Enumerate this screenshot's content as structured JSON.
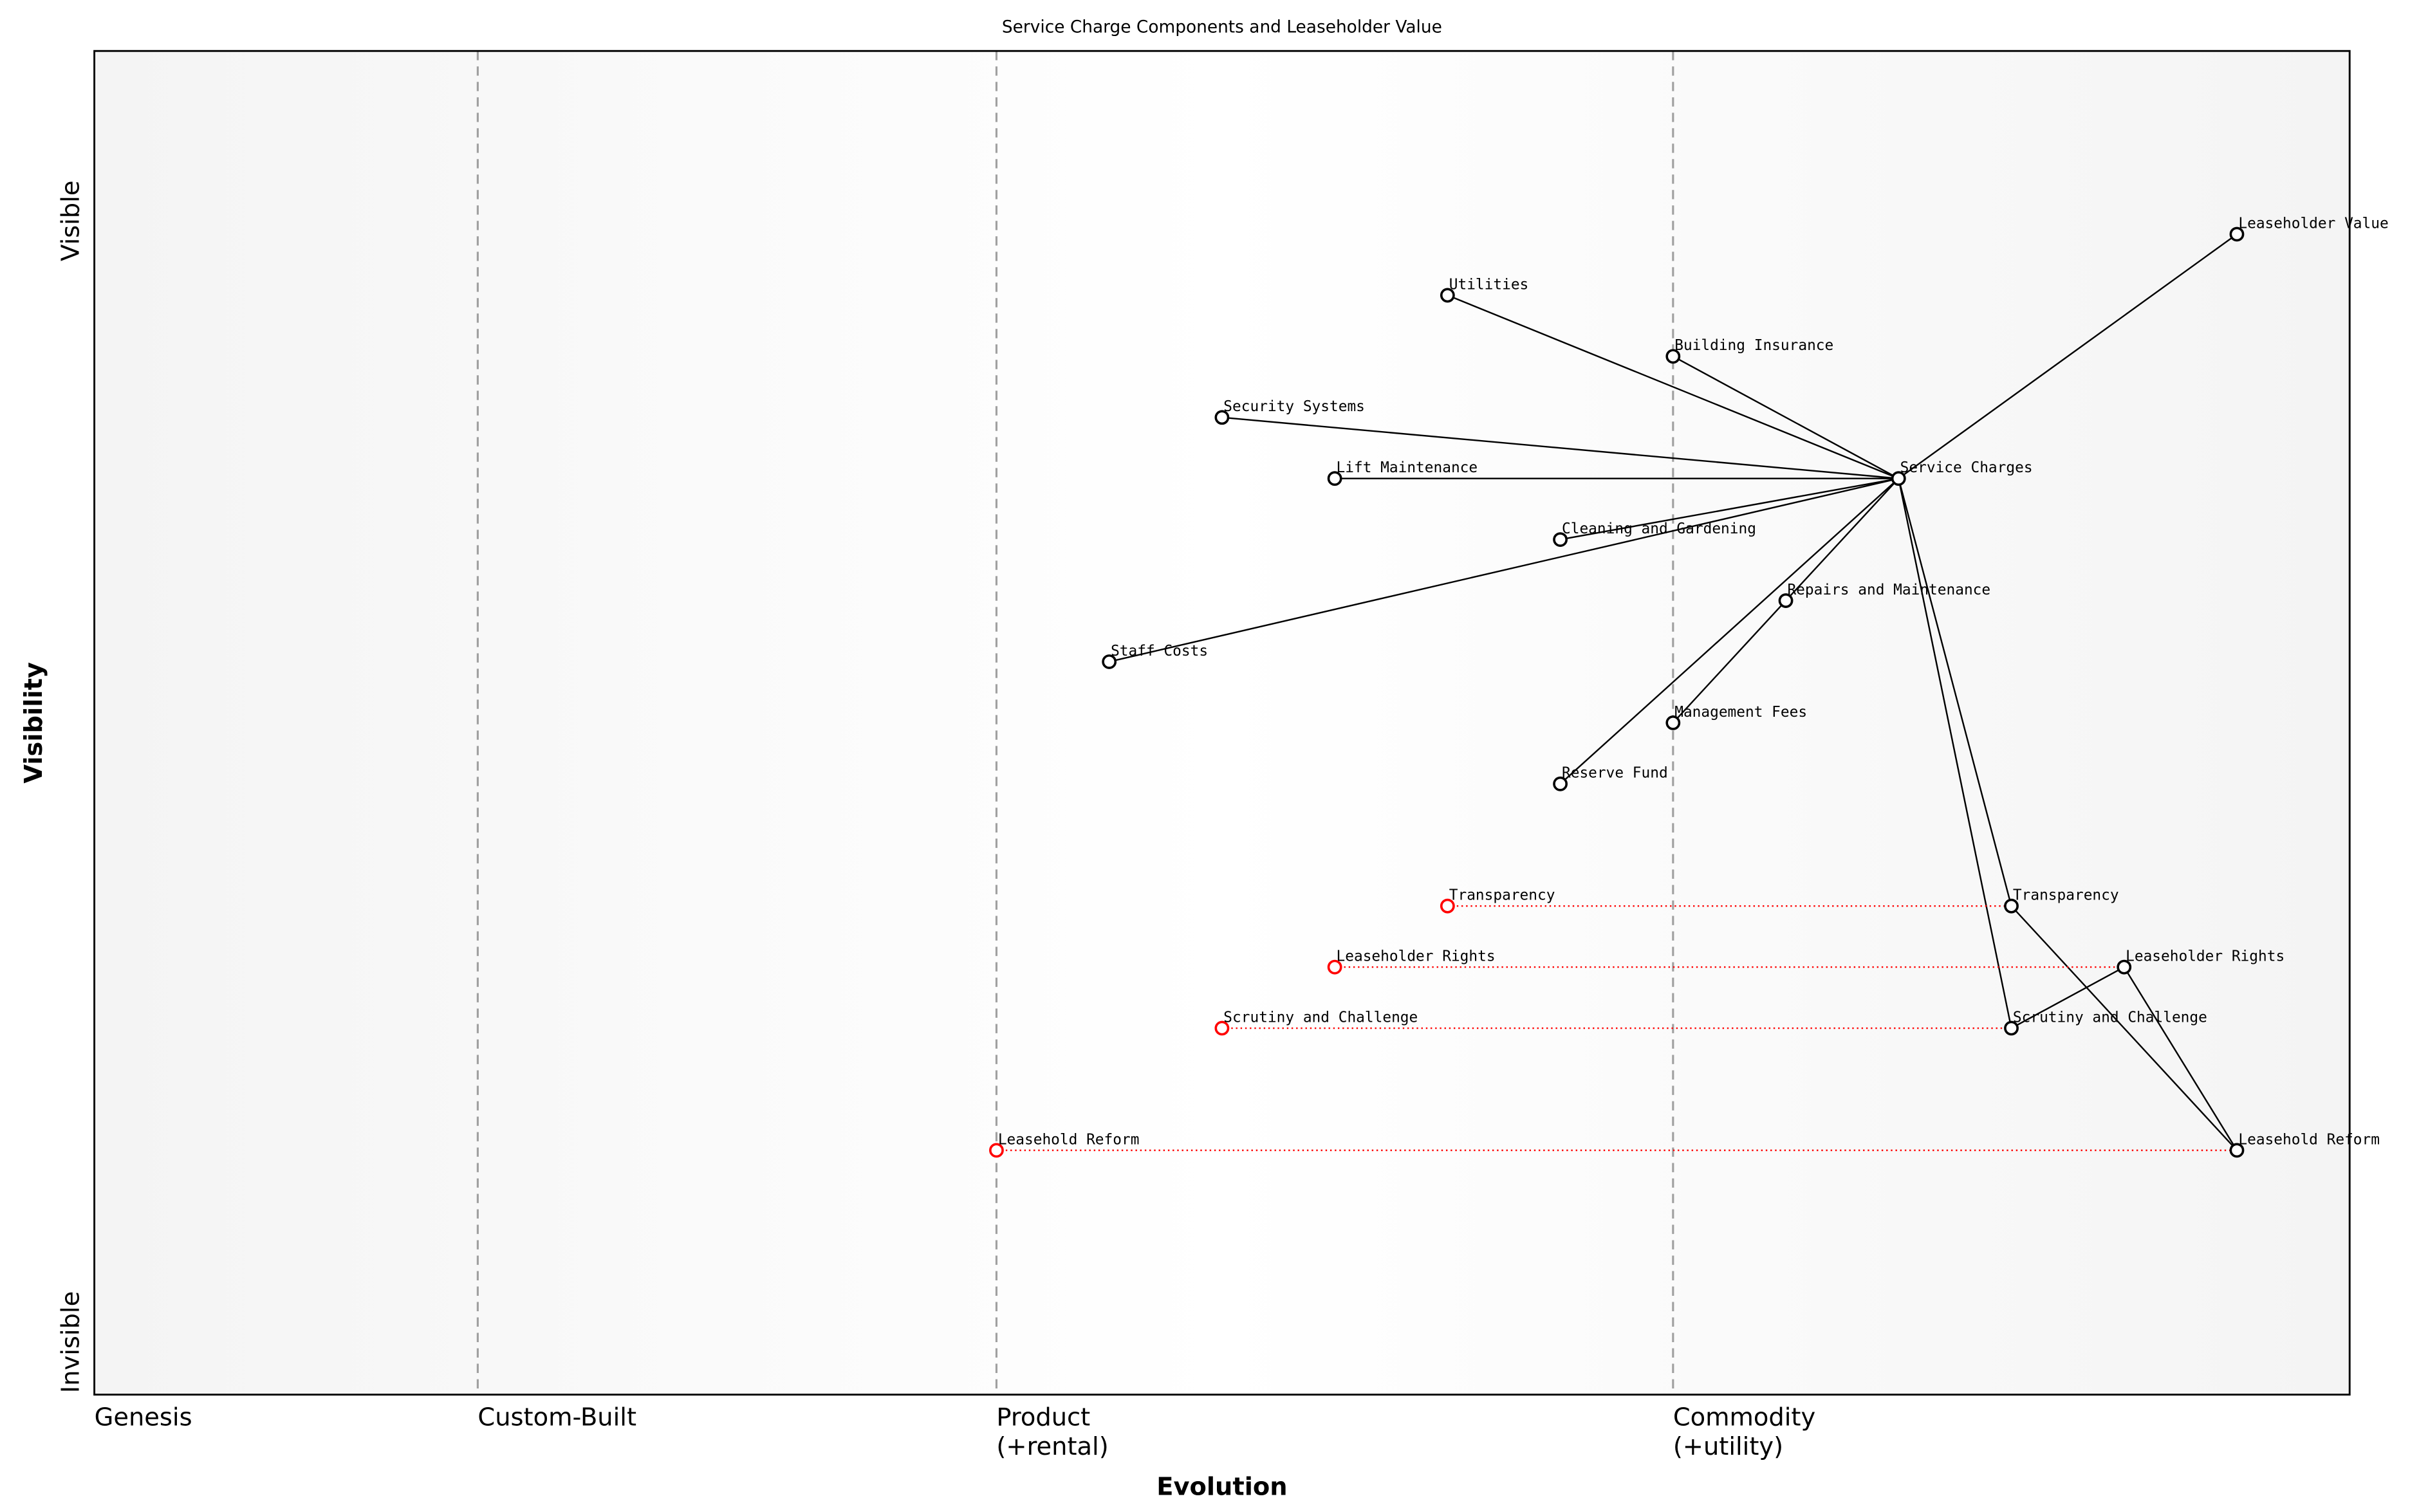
{
  "title": "Service Charge Components and Leaseholder Value",
  "axes": {
    "xlabel": "Evolution",
    "ylabel": "Visibility",
    "y_top": "Visible",
    "y_bottom": "Invisible",
    "stages": [
      {
        "label": "Genesis",
        "at": 0.0
      },
      {
        "label": "Custom-Built",
        "at": 0.17
      },
      {
        "label": "Product\n(+rental)",
        "at": 0.4
      },
      {
        "label": "Commodity\n(+utility)",
        "at": 0.7
      }
    ],
    "xlim": [
      0,
      1
    ],
    "ylim": [
      -0.05,
      1.05
    ]
  },
  "components": [
    {
      "name": "Leaseholder Value",
      "evolution": 0.95,
      "visibility": 0.9
    },
    {
      "name": "Utilities",
      "evolution": 0.6,
      "visibility": 0.85
    },
    {
      "name": "Building Insurance",
      "evolution": 0.7,
      "visibility": 0.8
    },
    {
      "name": "Security Systems",
      "evolution": 0.5,
      "visibility": 0.75
    },
    {
      "name": "Service Charges",
      "evolution": 0.8,
      "visibility": 0.7
    },
    {
      "name": "Lift Maintenance",
      "evolution": 0.55,
      "visibility": 0.7
    },
    {
      "name": "Cleaning and Gardening",
      "evolution": 0.65,
      "visibility": 0.65
    },
    {
      "name": "Repairs and Maintenance",
      "evolution": 0.75,
      "visibility": 0.6
    },
    {
      "name": "Staff Costs",
      "evolution": 0.45,
      "visibility": 0.55
    },
    {
      "name": "Management Fees",
      "evolution": 0.7,
      "visibility": 0.5
    },
    {
      "name": "Reserve Fund",
      "evolution": 0.65,
      "visibility": 0.45
    },
    {
      "name": "Transparency",
      "evolution": 0.85,
      "visibility": 0.35
    },
    {
      "name": "Leaseholder Rights",
      "evolution": 0.9,
      "visibility": 0.3
    },
    {
      "name": "Scrutiny and Challenge",
      "evolution": 0.85,
      "visibility": 0.25
    },
    {
      "name": "Leasehold Reform",
      "evolution": 0.95,
      "visibility": 0.15
    }
  ],
  "evolve_from": [
    {
      "name": "Transparency",
      "evolution": 0.6,
      "to": 0.85,
      "visibility": 0.35
    },
    {
      "name": "Leaseholder Rights",
      "evolution": 0.55,
      "to": 0.9,
      "visibility": 0.3
    },
    {
      "name": "Scrutiny and Challenge",
      "evolution": 0.5,
      "to": 0.85,
      "visibility": 0.25
    },
    {
      "name": "Leasehold Reform",
      "evolution": 0.4,
      "to": 0.95,
      "visibility": 0.15
    }
  ],
  "links": [
    [
      "Leaseholder Value",
      "Service Charges"
    ],
    [
      "Service Charges",
      "Utilities"
    ],
    [
      "Service Charges",
      "Building Insurance"
    ],
    [
      "Service Charges",
      "Security Systems"
    ],
    [
      "Service Charges",
      "Lift Maintenance"
    ],
    [
      "Service Charges",
      "Cleaning and Gardening"
    ],
    [
      "Service Charges",
      "Staff Costs"
    ],
    [
      "Service Charges",
      "Repairs and Maintenance"
    ],
    [
      "Service Charges",
      "Reserve Fund"
    ],
    [
      "Repairs and Maintenance",
      "Management Fees"
    ],
    [
      "Service Charges",
      "Transparency"
    ],
    [
      "Service Charges",
      "Scrutiny and Challenge"
    ],
    [
      "Transparency",
      "Leasehold Reform"
    ],
    [
      "Scrutiny and Challenge",
      "Leaseholder Rights"
    ],
    [
      "Leaseholder Rights",
      "Leasehold Reform"
    ]
  ],
  "colors": {
    "evolve": "#ff0000",
    "node": "#000000",
    "edge_band": "#f4f4f4",
    "divider": "#a0a0a0"
  }
}
